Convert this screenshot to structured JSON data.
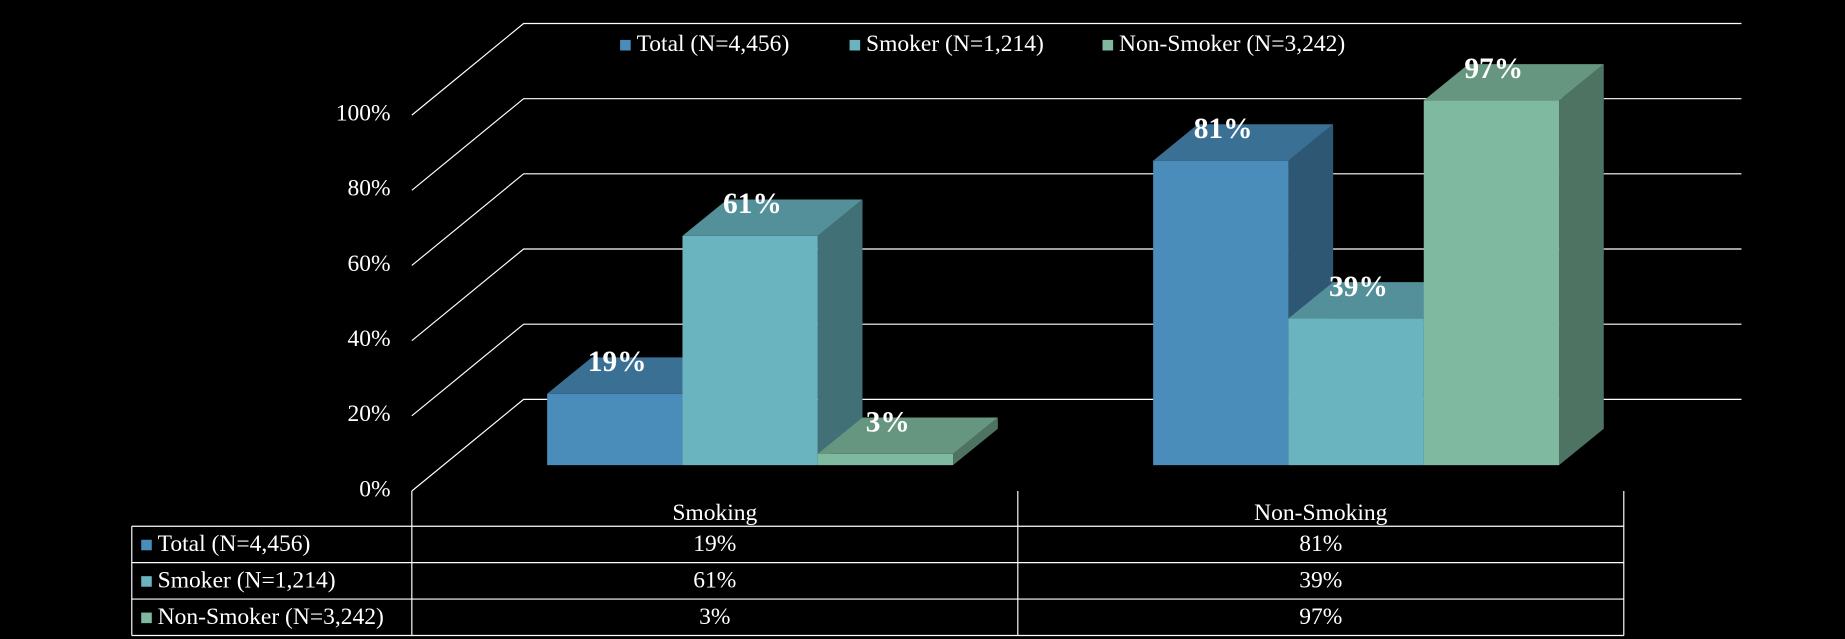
{
  "chart_data": {
    "type": "bar3d",
    "categories": [
      "Smoking",
      "Non-Smoking"
    ],
    "series": [
      {
        "name": "Total (N=4,456)",
        "color": "#4a8cba",
        "values": [
          19,
          81
        ],
        "value_labels": [
          "19%",
          "81%"
        ]
      },
      {
        "name": "Smoker (N=1,214)",
        "color": "#69b4bf",
        "values": [
          61,
          39
        ],
        "value_labels": [
          "61%",
          "39%"
        ]
      },
      {
        "name": "Non-Smoker (N=3,242)",
        "color": "#7fbaa0",
        "values": [
          3,
          97
        ],
        "value_labels": [
          "3%",
          "97%"
        ]
      }
    ],
    "ylim": [
      0,
      100
    ],
    "yticks": [
      {
        "value": 0,
        "label": "0%"
      },
      {
        "value": 20,
        "label": "20%"
      },
      {
        "value": 40,
        "label": "40%"
      },
      {
        "value": 60,
        "label": "60%"
      },
      {
        "value": 80,
        "label": "80%"
      },
      {
        "value": 100,
        "label": "100%"
      }
    ],
    "grid": true,
    "legend": "top",
    "data_table": true
  }
}
